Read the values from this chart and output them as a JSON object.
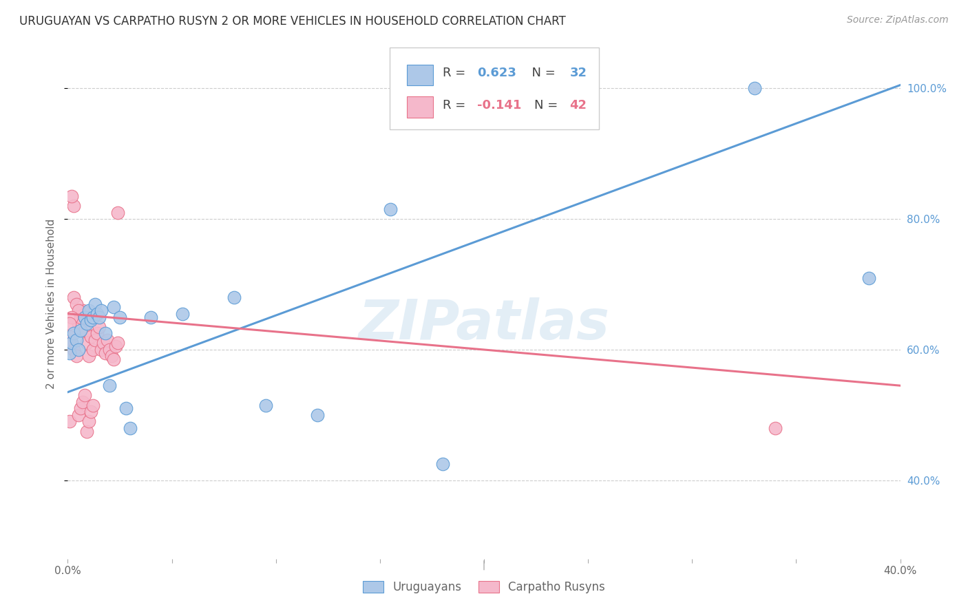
{
  "title": "URUGUAYAN VS CARPATHO RUSYN 2 OR MORE VEHICLES IN HOUSEHOLD CORRELATION CHART",
  "source": "Source: ZipAtlas.com",
  "ylabel": "2 or more Vehicles in Household",
  "watermark": "ZIPatlas",
  "xlim": [
    0.0,
    0.4
  ],
  "ylim": [
    0.28,
    1.06
  ],
  "xtick_vals": [
    0.0,
    0.05,
    0.1,
    0.15,
    0.2,
    0.25,
    0.3,
    0.35,
    0.4
  ],
  "xtick_labels": [
    "0.0%",
    "",
    "",
    "",
    "",
    "",
    "",
    "",
    "40.0%"
  ],
  "ytick_vals": [
    0.4,
    0.6,
    0.8,
    1.0
  ],
  "ytick_labels": [
    "40.0%",
    "60.0%",
    "80.0%",
    "100.0%"
  ],
  "uruguayan_color": "#adc8e8",
  "carpatho_color": "#f5b8cb",
  "uruguayan_line_color": "#5b9bd5",
  "carpatho_line_color": "#e8728a",
  "uru_trend_x": [
    0.0,
    0.4
  ],
  "uru_trend_y": [
    0.535,
    1.005
  ],
  "carp_trend_x": [
    0.0,
    0.4
  ],
  "carp_trend_y": [
    0.655,
    0.545
  ],
  "uruguayan_x": [
    0.001,
    0.002,
    0.003,
    0.004,
    0.005,
    0.006,
    0.008,
    0.009,
    0.01,
    0.011,
    0.012,
    0.013,
    0.014,
    0.015,
    0.016,
    0.018,
    0.02,
    0.022,
    0.025,
    0.028,
    0.03,
    0.04,
    0.055,
    0.08,
    0.095,
    0.12,
    0.155,
    0.18,
    0.33,
    0.385
  ],
  "uruguayan_y": [
    0.595,
    0.61,
    0.625,
    0.615,
    0.6,
    0.63,
    0.65,
    0.64,
    0.66,
    0.645,
    0.65,
    0.67,
    0.655,
    0.65,
    0.66,
    0.625,
    0.545,
    0.665,
    0.65,
    0.51,
    0.48,
    0.65,
    0.655,
    0.68,
    0.515,
    0.5,
    0.815,
    0.425,
    1.0,
    0.71
  ],
  "carpatho_x": [
    0.001,
    0.002,
    0.003,
    0.004,
    0.005,
    0.006,
    0.007,
    0.008,
    0.009,
    0.01,
    0.011,
    0.012,
    0.013,
    0.014,
    0.015,
    0.016,
    0.017,
    0.018,
    0.019,
    0.02,
    0.021,
    0.022,
    0.023,
    0.024,
    0.003,
    0.002,
    0.001,
    0.005,
    0.006,
    0.007,
    0.008,
    0.009,
    0.01,
    0.011,
    0.012,
    0.003,
    0.004,
    0.005,
    0.002,
    0.001,
    0.024,
    0.34
  ],
  "carpatho_y": [
    0.62,
    0.61,
    0.6,
    0.59,
    0.64,
    0.65,
    0.66,
    0.63,
    0.61,
    0.59,
    0.62,
    0.6,
    0.615,
    0.625,
    0.635,
    0.6,
    0.61,
    0.595,
    0.615,
    0.6,
    0.59,
    0.585,
    0.605,
    0.61,
    0.82,
    0.835,
    0.49,
    0.5,
    0.51,
    0.52,
    0.53,
    0.475,
    0.49,
    0.505,
    0.515,
    0.68,
    0.67,
    0.66,
    0.65,
    0.64,
    0.81,
    0.48
  ]
}
